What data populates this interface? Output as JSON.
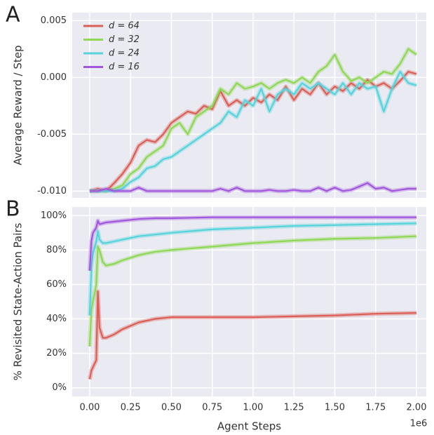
{
  "chart_data": [
    {
      "type": "line",
      "panel_label": "A",
      "ylabel": "Average Reward / Step",
      "x": [
        0,
        0.05,
        0.1,
        0.15,
        0.2,
        0.25,
        0.3,
        0.35,
        0.4,
        0.45,
        0.5,
        0.55,
        0.6,
        0.65,
        0.7,
        0.75,
        0.8,
        0.85,
        0.9,
        0.95,
        1.0,
        1.05,
        1.1,
        1.15,
        1.2,
        1.25,
        1.3,
        1.35,
        1.4,
        1.45,
        1.5,
        1.55,
        1.6,
        1.65,
        1.7,
        1.75,
        1.8,
        1.85,
        1.9,
        1.95,
        2.0
      ],
      "series": [
        {
          "name": "d = 64",
          "color": "#db5f57",
          "values": [
            -0.01,
            -0.0098,
            -0.01,
            -0.0093,
            -0.0085,
            -0.0075,
            -0.006,
            -0.0055,
            -0.0057,
            -0.005,
            -0.004,
            -0.0035,
            -0.003,
            -0.0032,
            -0.0025,
            -0.0028,
            -0.0012,
            -0.0025,
            -0.002,
            -0.0025,
            -0.0018,
            -0.0022,
            -0.0015,
            -0.002,
            -0.0008,
            -0.002,
            -0.001,
            -0.0015,
            -0.0005,
            -0.0015,
            -0.0008,
            -0.0012,
            -0.0005,
            -0.001,
            -0.0002,
            -0.0008,
            -0.0005,
            -0.001,
            -0.0003,
            0.0005,
            0.0003
          ]
        },
        {
          "name": "d = 32",
          "color": "#8fd857",
          "values": [
            -0.01,
            -0.01,
            -0.01,
            -0.0098,
            -0.0095,
            -0.0085,
            -0.008,
            -0.007,
            -0.0065,
            -0.006,
            -0.0045,
            -0.004,
            -0.005,
            -0.0035,
            -0.003,
            -0.0025,
            -0.001,
            -0.0015,
            -0.0005,
            -0.001,
            -0.0008,
            -0.0005,
            -0.001,
            -0.0005,
            -0.0002,
            -0.0005,
            0.0,
            -0.0005,
            0.0005,
            0.001,
            0.002,
            0.0005,
            -0.0003,
            0.0,
            -0.0005,
            0.0,
            0.0005,
            0.0003,
            0.0012,
            0.0025,
            0.002
          ]
        },
        {
          "name": "d = 24",
          "color": "#57d3db",
          "values": [
            -0.01,
            -0.01,
            -0.01,
            -0.01,
            -0.0098,
            -0.0092,
            -0.0088,
            -0.008,
            -0.0078,
            -0.0072,
            -0.007,
            -0.0065,
            -0.006,
            -0.0055,
            -0.005,
            -0.0045,
            -0.004,
            -0.003,
            -0.0035,
            -0.002,
            -0.0025,
            -0.001,
            -0.003,
            -0.0015,
            -0.001,
            -0.0015,
            -0.0005,
            -0.001,
            -0.0005,
            -0.001,
            -0.0015,
            -0.0005,
            -0.0015,
            -0.0005,
            -0.001,
            -0.0008,
            -0.003,
            -0.001,
            0.0005,
            -0.0005,
            -0.0007
          ]
        },
        {
          "name": "d = 16",
          "color": "#a157db",
          "values": [
            -0.01,
            -0.01,
            -0.0098,
            -0.01,
            -0.01,
            -0.01,
            -0.0097,
            -0.01,
            -0.01,
            -0.01,
            -0.01,
            -0.01,
            -0.01,
            -0.01,
            -0.01,
            -0.01,
            -0.0098,
            -0.01,
            -0.0097,
            -0.01,
            -0.01,
            -0.01,
            -0.0099,
            -0.01,
            -0.01,
            -0.0099,
            -0.01,
            -0.01,
            -0.0097,
            -0.01,
            -0.0097,
            -0.01,
            -0.0099,
            -0.0096,
            -0.0093,
            -0.0098,
            -0.0097,
            -0.01,
            -0.0099,
            -0.0098,
            -0.0098
          ]
        }
      ],
      "xlim": [
        -0.107,
        2.06
      ],
      "xticks": [
        0,
        0.25,
        0.5,
        0.75,
        1,
        1.25,
        1.5,
        1.75,
        2
      ],
      "ylim": [
        -0.0106,
        0.0057
      ],
      "yticks": [
        {
          "value": -0.01,
          "label": "-0.010"
        },
        -0.005,
        {
          "value": 0,
          "label": "0.000"
        },
        0.005
      ],
      "grid": true,
      "legend": "upper left"
    },
    {
      "type": "line",
      "panel_label": "B",
      "ylabel": "% Revisited State-Action Pairs",
      "xlabel": "Agent Steps",
      "x_offset_label": "1e6",
      "x": [
        0,
        0.01,
        0.02,
        0.04,
        0.05,
        0.06,
        0.08,
        0.1,
        0.15,
        0.2,
        0.3,
        0.4,
        0.5,
        0.75,
        1.0,
        1.25,
        1.5,
        1.75,
        2.0
      ],
      "series": [
        {
          "name": "d = 64",
          "color": "#db5f57",
          "values": [
            5,
            10,
            12,
            16,
            56,
            35,
            29,
            29,
            31,
            34,
            38,
            40,
            41,
            41,
            41,
            41.5,
            42,
            43,
            43.5
          ]
        },
        {
          "name": "d = 32",
          "color": "#8fd857",
          "values": [
            24,
            45,
            50,
            60,
            82,
            80,
            73,
            71,
            72,
            74,
            77,
            79,
            80,
            82,
            84,
            85.5,
            86.5,
            87,
            88
          ]
        },
        {
          "name": "d = 24",
          "color": "#57d3db",
          "values": [
            42,
            70,
            78,
            85,
            91,
            86,
            84,
            84,
            85,
            86,
            88,
            89,
            90,
            92,
            93,
            94,
            94.5,
            95,
            95.5
          ]
        },
        {
          "name": "d = 16",
          "color": "#a157db",
          "values": [
            68,
            85,
            90,
            93,
            97,
            95,
            95.5,
            96,
            96.5,
            97,
            98,
            98.5,
            98.5,
            99,
            99,
            99,
            99,
            99,
            99
          ]
        }
      ],
      "xlim": [
        -0.107,
        2.06
      ],
      "xticks": [
        {
          "value": 0,
          "label": "0.00"
        },
        0.25,
        {
          "value": 0.5,
          "label": "0.50"
        },
        0.75,
        {
          "value": 1,
          "label": "1.00"
        },
        1.25,
        {
          "value": 1.5,
          "label": "1.50"
        },
        1.75,
        {
          "value": 2,
          "label": "2.00"
        }
      ],
      "ylim": [
        -5,
        105
      ],
      "yticks": [
        {
          "value": 0,
          "label": "0%"
        },
        {
          "value": 20,
          "label": "20%"
        },
        {
          "value": 40,
          "label": "40%"
        },
        {
          "value": 60,
          "label": "60%"
        },
        {
          "value": 80,
          "label": "80%"
        },
        {
          "value": 100,
          "label": "100%"
        }
      ],
      "grid": true
    }
  ]
}
